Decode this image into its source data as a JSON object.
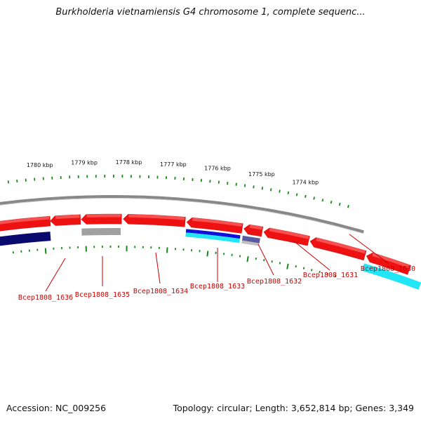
{
  "title": "Burkholderia vietnamiensis G4 chromosome 1, complete sequenc...",
  "footer": {
    "accession": "Accession: NC_009256",
    "summary": "Topology: circular; Length: 3,652,814 bp; Genes: 3,349"
  },
  "ruler": {
    "labels": [
      "1780 kbp",
      "1779 kbp",
      "1778 kbp",
      "1777 kbp",
      "1776 kbp",
      "1775 kbp",
      "1774 kbp"
    ]
  },
  "loci": [
    "Bcep1808_1636",
    "Bcep1808_1635",
    "Bcep1808_1634",
    "Bcep1808_1633",
    "Bcep1808_1632",
    "Bcep1808_1631",
    "Bcep1808_1630"
  ],
  "colors": {
    "gene": "#ee1111",
    "label": "#cc0000",
    "backbone": "#888888",
    "tick": "#1a8a1a",
    "track_navy": "#0a0a6e",
    "track_gray": "#a0a0a0",
    "track_blue": "#1010dd",
    "track_cyan": "#22e5f5"
  }
}
